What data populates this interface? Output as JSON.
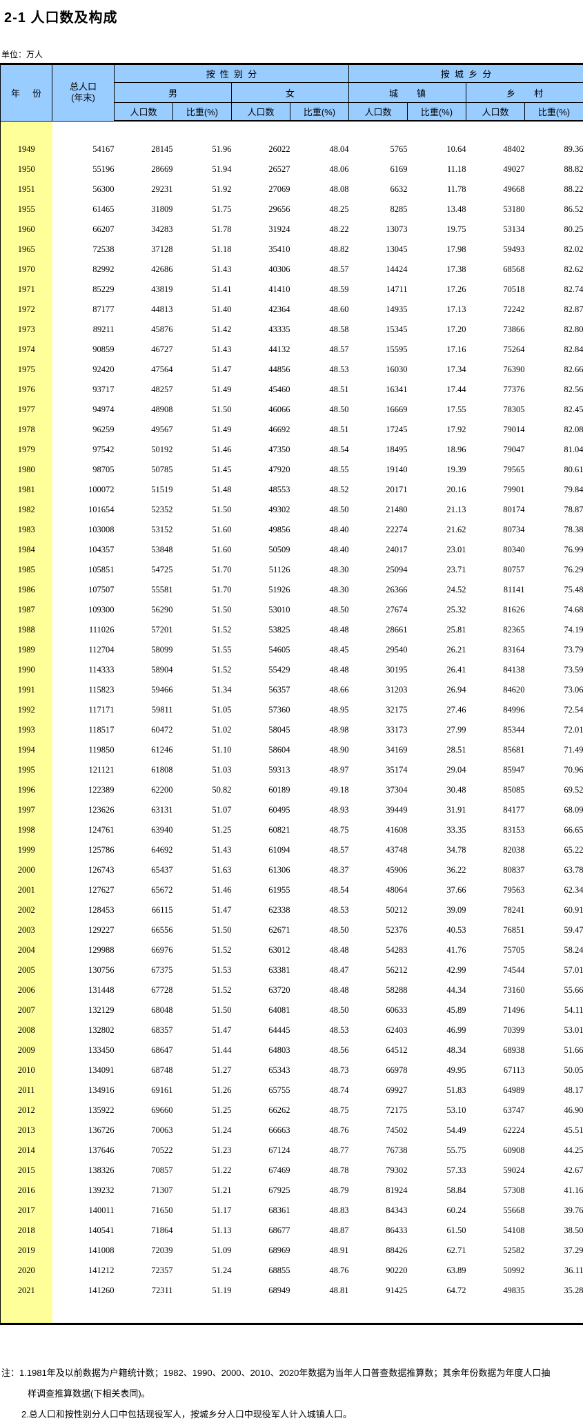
{
  "page": {
    "title": "2-1  人口数及构成",
    "unit_label": "单位：万人"
  },
  "table": {
    "headers": {
      "year": "年 份",
      "total_line1": "总人口",
      "total_line2": "(年末)",
      "by_gender": "按性别分",
      "by_urban_rural": "按城乡分",
      "male": "男",
      "female": "女",
      "urban": "城 镇",
      "rural": "乡 村",
      "population": "人口数",
      "share": "比重(%)"
    },
    "columns": [
      "year",
      "total-pop",
      "male-pop",
      "male-share",
      "female-pop",
      "female-share",
      "urban-pop",
      "urban-share",
      "rural-pop",
      "rural-share"
    ],
    "rows": [
      [
        "1949",
        "54167",
        "28145",
        "51.96",
        "26022",
        "48.04",
        "5765",
        "10.64",
        "48402",
        "89.36"
      ],
      [
        "1950",
        "55196",
        "28669",
        "51.94",
        "26527",
        "48.06",
        "6169",
        "11.18",
        "49027",
        "88.82"
      ],
      [
        "1951",
        "56300",
        "29231",
        "51.92",
        "27069",
        "48.08",
        "6632",
        "11.78",
        "49668",
        "88.22"
      ],
      [
        "1955",
        "61465",
        "31809",
        "51.75",
        "29656",
        "48.25",
        "8285",
        "13.48",
        "53180",
        "86.52"
      ],
      [
        "1960",
        "66207",
        "34283",
        "51.78",
        "31924",
        "48.22",
        "13073",
        "19.75",
        "53134",
        "80.25"
      ],
      [
        "1965",
        "72538",
        "37128",
        "51.18",
        "35410",
        "48.82",
        "13045",
        "17.98",
        "59493",
        "82.02"
      ],
      [
        "1970",
        "82992",
        "42686",
        "51.43",
        "40306",
        "48.57",
        "14424",
        "17.38",
        "68568",
        "82.62"
      ],
      [
        "1971",
        "85229",
        "43819",
        "51.41",
        "41410",
        "48.59",
        "14711",
        "17.26",
        "70518",
        "82.74"
      ],
      [
        "1972",
        "87177",
        "44813",
        "51.40",
        "42364",
        "48.60",
        "14935",
        "17.13",
        "72242",
        "82.87"
      ],
      [
        "1973",
        "89211",
        "45876",
        "51.42",
        "43335",
        "48.58",
        "15345",
        "17.20",
        "73866",
        "82.80"
      ],
      [
        "1974",
        "90859",
        "46727",
        "51.43",
        "44132",
        "48.57",
        "15595",
        "17.16",
        "75264",
        "82.84"
      ],
      [
        "1975",
        "92420",
        "47564",
        "51.47",
        "44856",
        "48.53",
        "16030",
        "17.34",
        "76390",
        "82.66"
      ],
      [
        "1976",
        "93717",
        "48257",
        "51.49",
        "45460",
        "48.51",
        "16341",
        "17.44",
        "77376",
        "82.56"
      ],
      [
        "1977",
        "94974",
        "48908",
        "51.50",
        "46066",
        "48.50",
        "16669",
        "17.55",
        "78305",
        "82.45"
      ],
      [
        "1978",
        "96259",
        "49567",
        "51.49",
        "46692",
        "48.51",
        "17245",
        "17.92",
        "79014",
        "82.08"
      ],
      [
        "1979",
        "97542",
        "50192",
        "51.46",
        "47350",
        "48.54",
        "18495",
        "18.96",
        "79047",
        "81.04"
      ],
      [
        "1980",
        "98705",
        "50785",
        "51.45",
        "47920",
        "48.55",
        "19140",
        "19.39",
        "79565",
        "80.61"
      ],
      [
        "1981",
        "100072",
        "51519",
        "51.48",
        "48553",
        "48.52",
        "20171",
        "20.16",
        "79901",
        "79.84"
      ],
      [
        "1982",
        "101654",
        "52352",
        "51.50",
        "49302",
        "48.50",
        "21480",
        "21.13",
        "80174",
        "78.87"
      ],
      [
        "1983",
        "103008",
        "53152",
        "51.60",
        "49856",
        "48.40",
        "22274",
        "21.62",
        "80734",
        "78.38"
      ],
      [
        "1984",
        "104357",
        "53848",
        "51.60",
        "50509",
        "48.40",
        "24017",
        "23.01",
        "80340",
        "76.99"
      ],
      [
        "1985",
        "105851",
        "54725",
        "51.70",
        "51126",
        "48.30",
        "25094",
        "23.71",
        "80757",
        "76.29"
      ],
      [
        "1986",
        "107507",
        "55581",
        "51.70",
        "51926",
        "48.30",
        "26366",
        "24.52",
        "81141",
        "75.48"
      ],
      [
        "1987",
        "109300",
        "56290",
        "51.50",
        "53010",
        "48.50",
        "27674",
        "25.32",
        "81626",
        "74.68"
      ],
      [
        "1988",
        "111026",
        "57201",
        "51.52",
        "53825",
        "48.48",
        "28661",
        "25.81",
        "82365",
        "74.19"
      ],
      [
        "1989",
        "112704",
        "58099",
        "51.55",
        "54605",
        "48.45",
        "29540",
        "26.21",
        "83164",
        "73.79"
      ],
      [
        "1990",
        "114333",
        "58904",
        "51.52",
        "55429",
        "48.48",
        "30195",
        "26.41",
        "84138",
        "73.59"
      ],
      [
        "1991",
        "115823",
        "59466",
        "51.34",
        "56357",
        "48.66",
        "31203",
        "26.94",
        "84620",
        "73.06"
      ],
      [
        "1992",
        "117171",
        "59811",
        "51.05",
        "57360",
        "48.95",
        "32175",
        "27.46",
        "84996",
        "72.54"
      ],
      [
        "1993",
        "118517",
        "60472",
        "51.02",
        "58045",
        "48.98",
        "33173",
        "27.99",
        "85344",
        "72.01"
      ],
      [
        "1994",
        "119850",
        "61246",
        "51.10",
        "58604",
        "48.90",
        "34169",
        "28.51",
        "85681",
        "71.49"
      ],
      [
        "1995",
        "121121",
        "61808",
        "51.03",
        "59313",
        "48.97",
        "35174",
        "29.04",
        "85947",
        "70.96"
      ],
      [
        "1996",
        "122389",
        "62200",
        "50.82",
        "60189",
        "49.18",
        "37304",
        "30.48",
        "85085",
        "69.52"
      ],
      [
        "1997",
        "123626",
        "63131",
        "51.07",
        "60495",
        "48.93",
        "39449",
        "31.91",
        "84177",
        "68.09"
      ],
      [
        "1998",
        "124761",
        "63940",
        "51.25",
        "60821",
        "48.75",
        "41608",
        "33.35",
        "83153",
        "66.65"
      ],
      [
        "1999",
        "125786",
        "64692",
        "51.43",
        "61094",
        "48.57",
        "43748",
        "34.78",
        "82038",
        "65.22"
      ],
      [
        "2000",
        "126743",
        "65437",
        "51.63",
        "61306",
        "48.37",
        "45906",
        "36.22",
        "80837",
        "63.78"
      ],
      [
        "2001",
        "127627",
        "65672",
        "51.46",
        "61955",
        "48.54",
        "48064",
        "37.66",
        "79563",
        "62.34"
      ],
      [
        "2002",
        "128453",
        "66115",
        "51.47",
        "62338",
        "48.53",
        "50212",
        "39.09",
        "78241",
        "60.91"
      ],
      [
        "2003",
        "129227",
        "66556",
        "51.50",
        "62671",
        "48.50",
        "52376",
        "40.53",
        "76851",
        "59.47"
      ],
      [
        "2004",
        "129988",
        "66976",
        "51.52",
        "63012",
        "48.48",
        "54283",
        "41.76",
        "75705",
        "58.24"
      ],
      [
        "2005",
        "130756",
        "67375",
        "51.53",
        "63381",
        "48.47",
        "56212",
        "42.99",
        "74544",
        "57.01"
      ],
      [
        "2006",
        "131448",
        "67728",
        "51.52",
        "63720",
        "48.48",
        "58288",
        "44.34",
        "73160",
        "55.66"
      ],
      [
        "2007",
        "132129",
        "68048",
        "51.50",
        "64081",
        "48.50",
        "60633",
        "45.89",
        "71496",
        "54.11"
      ],
      [
        "2008",
        "132802",
        "68357",
        "51.47",
        "64445",
        "48.53",
        "62403",
        "46.99",
        "70399",
        "53.01"
      ],
      [
        "2009",
        "133450",
        "68647",
        "51.44",
        "64803",
        "48.56",
        "64512",
        "48.34",
        "68938",
        "51.66"
      ],
      [
        "2010",
        "134091",
        "68748",
        "51.27",
        "65343",
        "48.73",
        "66978",
        "49.95",
        "67113",
        "50.05"
      ],
      [
        "2011",
        "134916",
        "69161",
        "51.26",
        "65755",
        "48.74",
        "69927",
        "51.83",
        "64989",
        "48.17"
      ],
      [
        "2012",
        "135922",
        "69660",
        "51.25",
        "66262",
        "48.75",
        "72175",
        "53.10",
        "63747",
        "46.90"
      ],
      [
        "2013",
        "136726",
        "70063",
        "51.24",
        "66663",
        "48.76",
        "74502",
        "54.49",
        "62224",
        "45.51"
      ],
      [
        "2014",
        "137646",
        "70522",
        "51.23",
        "67124",
        "48.77",
        "76738",
        "55.75",
        "60908",
        "44.25"
      ],
      [
        "2015",
        "138326",
        "70857",
        "51.22",
        "67469",
        "48.78",
        "79302",
        "57.33",
        "59024",
        "42.67"
      ],
      [
        "2016",
        "139232",
        "71307",
        "51.21",
        "67925",
        "48.79",
        "81924",
        "58.84",
        "57308",
        "41.16"
      ],
      [
        "2017",
        "140011",
        "71650",
        "51.17",
        "68361",
        "48.83",
        "84343",
        "60.24",
        "55668",
        "39.76"
      ],
      [
        "2018",
        "140541",
        "71864",
        "51.13",
        "68677",
        "48.87",
        "86433",
        "61.50",
        "54108",
        "38.50"
      ],
      [
        "2019",
        "141008",
        "72039",
        "51.09",
        "68969",
        "48.91",
        "88426",
        "62.71",
        "52582",
        "37.29"
      ],
      [
        "2020",
        "141212",
        "72357",
        "51.24",
        "68855",
        "48.76",
        "90220",
        "63.89",
        "50992",
        "36.11"
      ],
      [
        "2021",
        "141260",
        "72311",
        "51.19",
        "68949",
        "48.81",
        "91425",
        "64.72",
        "49835",
        "35.28"
      ]
    ]
  },
  "notes": {
    "prefix": "注：",
    "note1_line1": "1.1981年及以前数据为户籍统计数；1982、1990、2000、2010、2020年数据为当年人口普查数据推算数；其余年份数据为年度人口抽",
    "note1_line2": "样调查推算数据(下相关表同)。",
    "note2": "2.总人口和按性别分人口中包括现役军人，按城乡分人口中现役军人计入城镇人口。"
  },
  "colors": {
    "header_bg": "#99CCFF",
    "year_col_bg": "#FFFF99",
    "border": "#000000"
  }
}
